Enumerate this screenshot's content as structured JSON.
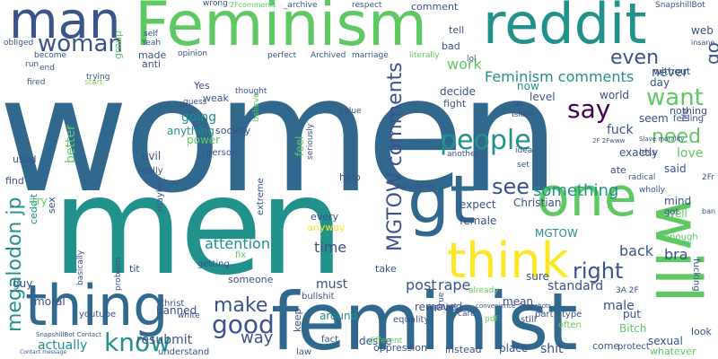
{
  "palette": {
    "background": "#ffffff",
    "navy": "#3b528b",
    "slate": "#31688e",
    "teal": "#21918c",
    "green": "#5ec962",
    "lime": "#90d743",
    "yellow": "#fde725",
    "purple": "#440154",
    "indigo": "#472d7b"
  },
  "words": [
    {
      "text": "women",
      "color": "#31688e"
    },
    {
      "text": "men",
      "color": "#21918c"
    },
    {
      "text": "feminist",
      "color": "#31688e"
    },
    {
      "text": "Feminism",
      "color": "#5ec962"
    },
    {
      "text": "thing",
      "color": "#31688e"
    },
    {
      "text": "reddit",
      "color": "#21918c"
    },
    {
      "text": "man",
      "color": "#3b528b"
    },
    {
      "text": "will",
      "color": "#5ec962"
    },
    {
      "text": "one",
      "color": "#5ec962"
    },
    {
      "text": "gt",
      "color": "#31688e"
    },
    {
      "text": "think",
      "color": "#fde725"
    },
    {
      "text": "woman",
      "color": "#3b528b"
    },
    {
      "text": "people",
      "color": "#21918c"
    },
    {
      "text": "know",
      "color": "#21918c"
    },
    {
      "text": "megalodon jp",
      "color": "#21918c"
    },
    {
      "text": "MGTOW comments",
      "color": "#3b528b"
    },
    {
      "text": "good",
      "color": "#3b528b"
    },
    {
      "text": "make",
      "color": "#3b528b"
    },
    {
      "text": "want",
      "color": "#5ec962"
    },
    {
      "text": "say",
      "color": "#440154"
    },
    {
      "text": "see",
      "color": "#3b528b"
    },
    {
      "text": "right",
      "color": "#3b528b"
    },
    {
      "text": "need",
      "color": "#5ec962"
    },
    {
      "text": "even",
      "color": "#3b528b"
    },
    {
      "text": "something",
      "color": "#21918c"
    },
    {
      "text": "Feminism comments",
      "color": "#21918c"
    },
    {
      "text": "way",
      "color": "#3b528b"
    },
    {
      "text": "go",
      "color": "#3b528b"
    },
    {
      "text": "work",
      "color": "#5ec962"
    },
    {
      "text": "post",
      "color": "#3b528b"
    },
    {
      "text": "time",
      "color": "#3b528b"
    },
    {
      "text": "back",
      "color": "#3b528b"
    },
    {
      "text": "bra",
      "color": "#3b528b"
    },
    {
      "text": "attention",
      "color": "#21918c"
    },
    {
      "text": "rape",
      "color": "#3b528b"
    },
    {
      "text": "must",
      "color": "#3b528b"
    },
    {
      "text": "better",
      "color": "#5ec962"
    },
    {
      "text": "going",
      "color": "#21918c"
    },
    {
      "text": "never",
      "color": "#3b528b"
    },
    {
      "text": "love",
      "color": "#5ec962"
    },
    {
      "text": "fuck",
      "color": "#3b528b"
    },
    {
      "text": "shit",
      "color": "#3b528b"
    },
    {
      "text": "actually",
      "color": "#21918c"
    },
    {
      "text": "resubmit",
      "color": "#3b528b"
    },
    {
      "text": "standard",
      "color": "#3b528b"
    },
    {
      "text": "male",
      "color": "#3b528b"
    },
    {
      "text": "removed",
      "color": "#3b528b"
    },
    {
      "text": "around",
      "color": "#21918c"
    },
    {
      "text": "desire",
      "color": "#3b528b"
    },
    {
      "text": "banned",
      "color": "#3b528b"
    },
    {
      "text": "guy",
      "color": "#3b528b"
    },
    {
      "text": "moral",
      "color": "#3b528b"
    },
    {
      "text": "evil",
      "color": "#3b528b"
    },
    {
      "text": "anything",
      "color": "#21918c"
    },
    {
      "text": "power",
      "color": "#5ec962"
    },
    {
      "text": "feel",
      "color": "#5ec962"
    },
    {
      "text": "expect",
      "color": "#3b528b"
    },
    {
      "text": "female",
      "color": "#3b528b"
    },
    {
      "text": "Christian",
      "color": "#3b528b"
    },
    {
      "text": "sure",
      "color": "#3b528b"
    },
    {
      "text": "mean",
      "color": "#3b528b"
    },
    {
      "text": "Bitch",
      "color": "#5ec962"
    },
    {
      "text": "put",
      "color": "#3b528b"
    },
    {
      "text": "sexual",
      "color": "#3b528b"
    },
    {
      "text": "whatever",
      "color": "#5ec962"
    },
    {
      "text": "MGTOW",
      "color": "#21918c"
    },
    {
      "text": "said",
      "color": "#3b528b"
    },
    {
      "text": "well",
      "color": "#5ec962"
    },
    {
      "text": "mind",
      "color": "#3b528b"
    },
    {
      "text": "exactly",
      "color": "#3b528b"
    },
    {
      "text": "seem",
      "color": "#3b528b"
    },
    {
      "text": "world",
      "color": "#3b528b"
    },
    {
      "text": "day",
      "color": "#3b528b"
    },
    {
      "text": "level",
      "color": "#3b528b"
    },
    {
      "text": "now",
      "color": "#21918c"
    },
    {
      "text": "decide",
      "color": "#3b528b"
    },
    {
      "text": "fight",
      "color": "#3b528b"
    },
    {
      "text": "keep",
      "color": "#3b528b"
    },
    {
      "text": "every",
      "color": "#3b528b"
    },
    {
      "text": "anyway",
      "color": "#fde725"
    },
    {
      "text": "help",
      "color": "#3b528b"
    },
    {
      "text": "take",
      "color": "#3b528b"
    },
    {
      "text": "someone",
      "color": "#3b528b"
    },
    {
      "text": "tit",
      "color": "#3b528b"
    },
    {
      "text": "ceddit",
      "color": "#21918c"
    },
    {
      "text": "try",
      "color": "#5ec962"
    },
    {
      "text": "sex",
      "color": "#3b528b"
    },
    {
      "text": "find",
      "color": "#3b528b"
    },
    {
      "text": "used",
      "color": "#3b528b"
    },
    {
      "text": "weak",
      "color": "#3b528b"
    },
    {
      "text": "society",
      "color": "#3b528b"
    },
    {
      "text": "Yes",
      "color": "#3b528b"
    },
    {
      "text": "made",
      "color": "#3b528b"
    },
    {
      "text": "anti",
      "color": "#3b528b"
    },
    {
      "text": "group",
      "color": "#5ec962"
    },
    {
      "text": "comment",
      "color": "#3b528b"
    },
    {
      "text": "tell",
      "color": "#3b528b"
    },
    {
      "text": "bad",
      "color": "#3b528b"
    },
    {
      "text": "web",
      "color": "#3b528b"
    },
    {
      "text": "without",
      "color": "#3b528b"
    },
    {
      "text": "nothing",
      "color": "#3b528b"
    },
    {
      "text": "feeling",
      "color": "#3b528b"
    },
    {
      "text": "life",
      "color": "#3b528b"
    },
    {
      "text": "less",
      "color": "#3b528b"
    },
    {
      "text": "ate",
      "color": "#3b528b"
    },
    {
      "text": "got",
      "color": "#3b528b"
    },
    {
      "text": "enough",
      "color": "#5ec962"
    },
    {
      "text": "fucking",
      "color": "#3b528b"
    },
    {
      "text": "look",
      "color": "#3b528b"
    },
    {
      "text": "come",
      "color": "#3b528b"
    },
    {
      "text": "protect",
      "color": "#3b528b"
    },
    {
      "text": "type",
      "color": "#3b528b"
    },
    {
      "text": "often",
      "color": "#5ec962"
    },
    {
      "text": "part",
      "color": "#3b528b"
    },
    {
      "text": "still",
      "color": "#3b528b"
    },
    {
      "text": "place",
      "color": "#3b528b"
    },
    {
      "text": "instead",
      "color": "#3b528b"
    },
    {
      "text": "oppression",
      "color": "#3b528b"
    },
    {
      "text": "law",
      "color": "#3b528b"
    },
    {
      "text": "fact",
      "color": "#3b528b"
    },
    {
      "text": "equality",
      "color": "#3b528b"
    },
    {
      "text": "point",
      "color": "#3b528b"
    },
    {
      "text": "bullshit",
      "color": "#3b528b"
    },
    {
      "text": "Christ",
      "color": "#3b528b"
    },
    {
      "text": "white",
      "color": "#3b528b"
    },
    {
      "text": "youtube",
      "color": "#3b528b"
    },
    {
      "text": "understand",
      "color": "#3b528b"
    },
    {
      "text": "getting",
      "color": "#3b528b"
    },
    {
      "text": "basically",
      "color": "#3b528b"
    },
    {
      "text": "problem",
      "color": "#3b528b"
    },
    {
      "text": "maybe",
      "color": "#3b528b"
    },
    {
      "text": "extreme",
      "color": "#3b528b"
    },
    {
      "text": "fix",
      "color": "#5ec962"
    },
    {
      "text": "really",
      "color": "#3b528b"
    },
    {
      "text": "person",
      "color": "#3b528b"
    },
    {
      "text": "guess",
      "color": "#3b528b"
    },
    {
      "text": "thought",
      "color": "#3b528b"
    },
    {
      "text": "opinion",
      "color": "#3b528b"
    },
    {
      "text": "believe",
      "color": "#5ec962"
    },
    {
      "text": "seriously",
      "color": "#3b528b"
    },
    {
      "text": "value",
      "color": "#3b528b"
    },
    {
      "text": "perfect",
      "color": "#3b528b"
    },
    {
      "text": "Archived",
      "color": "#3b528b"
    },
    {
      "text": "marriage",
      "color": "#3b528b"
    },
    {
      "text": "literally",
      "color": "#5ec962"
    },
    {
      "text": "lol",
      "color": "#3b528b"
    },
    {
      "text": "us",
      "color": "#3b528b"
    },
    {
      "text": "Islam",
      "color": "#3b528b"
    },
    {
      "text": "another",
      "color": "#3b528b"
    },
    {
      "text": "idea",
      "color": "#3b528b"
    },
    {
      "text": "set",
      "color": "#3b528b"
    },
    {
      "text": "radical",
      "color": "#3b528b"
    },
    {
      "text": "wholly",
      "color": "#3b528b"
    },
    {
      "text": "pushing",
      "color": "#3b528b"
    },
    {
      "text": "different",
      "color": "#5ec962"
    },
    {
      "text": "true",
      "color": "#3b528b"
    },
    {
      "text": "care",
      "color": "#3b528b"
    },
    {
      "text": "pdf",
      "color": "#5ec962"
    },
    {
      "text": "already",
      "color": "#5ec962"
    },
    {
      "text": "convenience",
      "color": "#3b528b"
    },
    {
      "text": "Snapshots",
      "color": "#3b528b"
    },
    {
      "text": "3A 2F",
      "color": "#3b528b"
    },
    {
      "text": "2F 2Fwww",
      "color": "#3b528b"
    },
    {
      "text": "Slave morality",
      "color": "#3b528b"
    },
    {
      "text": "insane",
      "color": "#3b528b"
    },
    {
      "text": "SnapshillBot",
      "color": "#3b528b"
    },
    {
      "text": "wrong",
      "color": "#3b528b"
    },
    {
      "text": "2Fcomments",
      "color": "#5ec962"
    },
    {
      "text": "_archive",
      "color": "#3b528b"
    },
    {
      "text": "respect",
      "color": "#3b528b"
    },
    {
      "text": "self",
      "color": "#3b528b"
    },
    {
      "text": "Yeah",
      "color": "#3b528b"
    },
    {
      "text": "start",
      "color": "#90d743"
    },
    {
      "text": "become",
      "color": "#3b528b"
    },
    {
      "text": "obliged",
      "color": "#3b528b"
    },
    {
      "text": "run",
      "color": "#3b528b"
    },
    {
      "text": "end",
      "color": "#3b528b"
    },
    {
      "text": "fired",
      "color": "#3b528b"
    },
    {
      "text": "trying",
      "color": "#3b528b"
    },
    {
      "text": "SnapshillBot Contact",
      "color": "#3b528b"
    },
    {
      "text": "Contact message",
      "color": "#3b528b"
    },
    {
      "text": "2Fr",
      "color": "#3b528b"
    },
    {
      "text": "ban",
      "color": "#3b528b"
    }
  ]
}
